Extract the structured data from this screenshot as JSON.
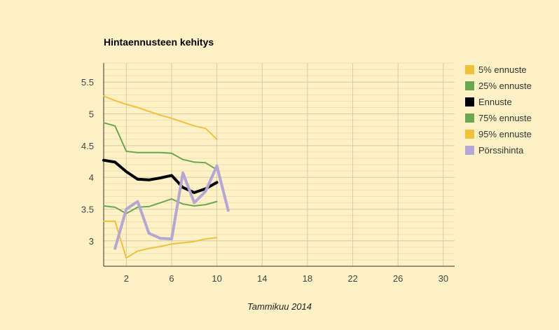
{
  "chart_data": {
    "type": "line",
    "title": "Hintaennusteen kehitys",
    "xlabel": "Tammikuu 2014",
    "ylabel": "",
    "xlim": [
      0,
      31
    ],
    "ylim": [
      2.6,
      5.8
    ],
    "x_ticks": [
      2,
      6,
      10,
      14,
      18,
      22,
      26,
      30
    ],
    "y_ticks": [
      3,
      3.5,
      4,
      4.5,
      5,
      5.5
    ],
    "grid": true,
    "legend_position": "right",
    "series": [
      {
        "name": "5% ennuste",
        "color": "#f0c23b",
        "width": 2,
        "x": [
          0,
          1,
          2,
          3,
          4,
          5,
          6,
          7,
          8,
          9,
          10
        ],
        "y": [
          3.31,
          3.31,
          2.73,
          2.84,
          2.88,
          2.91,
          2.95,
          2.97,
          2.99,
          3.03,
          3.05
        ]
      },
      {
        "name": "25% ennuste",
        "color": "#6aa84f",
        "width": 2,
        "x": [
          0,
          1,
          2,
          3,
          4,
          5,
          6,
          7,
          8,
          9,
          10
        ],
        "y": [
          3.55,
          3.53,
          3.43,
          3.53,
          3.54,
          3.6,
          3.66,
          3.58,
          3.55,
          3.57,
          3.62
        ]
      },
      {
        "name": "Ennuste",
        "color": "#000000",
        "width": 4,
        "x": [
          0,
          1,
          2,
          3,
          4,
          5,
          6,
          7,
          8,
          9,
          10
        ],
        "y": [
          4.27,
          4.24,
          4.09,
          3.97,
          3.96,
          3.99,
          4.03,
          3.84,
          3.76,
          3.82,
          3.92
        ]
      },
      {
        "name": "75% ennuste",
        "color": "#6aa84f",
        "width": 2,
        "x": [
          0,
          1,
          2,
          3,
          4,
          5,
          6,
          7,
          8,
          9,
          10
        ],
        "y": [
          4.86,
          4.81,
          4.41,
          4.39,
          4.39,
          4.39,
          4.38,
          4.28,
          4.24,
          4.23,
          4.12
        ]
      },
      {
        "name": "95% ennuste",
        "color": "#f0c23b",
        "width": 2,
        "x": [
          0,
          1,
          2,
          3,
          4,
          5,
          6,
          7,
          8,
          9,
          10
        ],
        "y": [
          5.28,
          5.21,
          5.15,
          5.1,
          5.04,
          4.98,
          4.93,
          4.87,
          4.81,
          4.77,
          4.6
        ]
      },
      {
        "name": "Pörssihinta",
        "color": "#b4a7d6",
        "width": 4,
        "x": [
          1,
          2,
          3,
          4,
          5,
          6,
          7,
          8,
          9,
          10,
          11
        ],
        "y": [
          2.88,
          3.5,
          3.62,
          3.12,
          3.04,
          3.03,
          4.07,
          3.6,
          3.78,
          4.18,
          3.48
        ]
      }
    ]
  }
}
